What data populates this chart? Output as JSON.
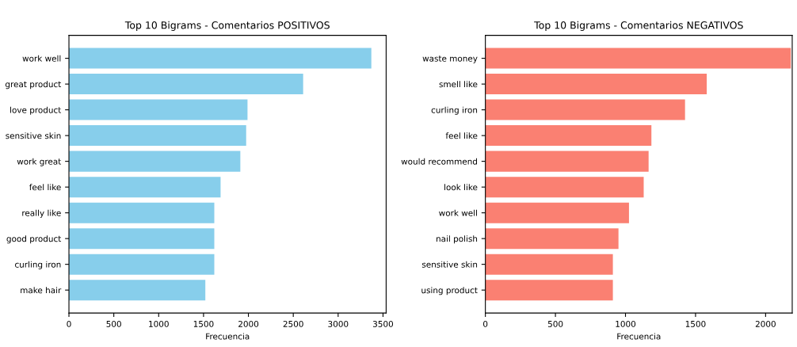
{
  "chart_data": [
    {
      "type": "bar",
      "orientation": "horizontal",
      "title": "Top 10 Bigrams - Comentarios POSITIVOS",
      "xlabel": "Frecuencia",
      "categories": [
        "work well",
        "great product",
        "love product",
        "sensitive skin",
        "work great",
        "feel like",
        "really like",
        "good product",
        "curling iron",
        "make hair"
      ],
      "series": [
        {
          "color": "#87ceeb",
          "values": [
            3370,
            2610,
            1990,
            1975,
            1910,
            1690,
            1620,
            1620,
            1620,
            1520
          ]
        }
      ],
      "xlim": [
        0,
        3535
      ],
      "xticks": [
        0,
        500,
        1000,
        1500,
        2000,
        2500,
        3000,
        3500
      ],
      "grid": false,
      "legend": false
    },
    {
      "type": "bar",
      "orientation": "horizontal",
      "title": "Top 10 Bigrams - Comentarios NEGATIVOS",
      "xlabel": "Frecuencia",
      "categories": [
        "waste money",
        "smell like",
        "curling iron",
        "feel like",
        "would recommend",
        "look like",
        "work well",
        "nail polish",
        "sensitive skin",
        "using product"
      ],
      "series": [
        {
          "color": "#fa8072",
          "values": [
            2180,
            1580,
            1425,
            1185,
            1165,
            1130,
            1025,
            950,
            910,
            910
          ]
        }
      ],
      "xlim": [
        0,
        2190
      ],
      "xticks": [
        0,
        500,
        1000,
        1500,
        2000
      ],
      "grid": false,
      "legend": false
    }
  ]
}
